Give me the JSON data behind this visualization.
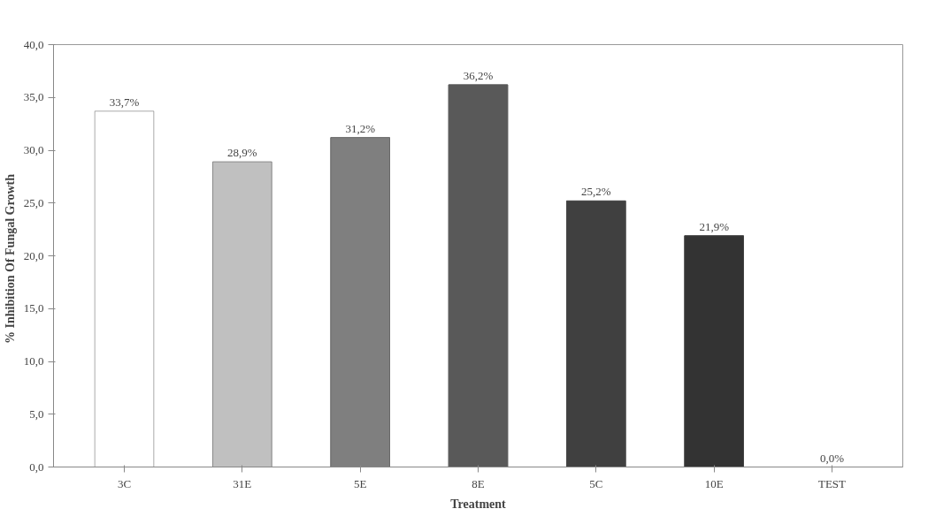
{
  "chart_data": {
    "type": "bar",
    "xlabel": "Treatment",
    "ylabel": "% Inhibition  Of Fungal  Growth",
    "categories": [
      "3C",
      "31E",
      "5E",
      "8E",
      "5C",
      "10E",
      "TEST"
    ],
    "values": [
      33.7,
      28.9,
      31.2,
      36.2,
      25.2,
      21.9,
      0.0
    ],
    "colors": [
      "#ffffff",
      "#c0c0c0",
      "#7f7f7f",
      "#595959",
      "#404040",
      "#333333",
      "#111111"
    ],
    "value_labels": [
      "33,7%",
      "28,9%",
      "31,2%",
      "36,2%",
      "25,2%",
      "21,9%",
      "0,0%"
    ],
    "ylim": [
      0,
      40
    ],
    "yticks": [
      {
        "value": 0,
        "label": "0,0"
      },
      {
        "value": 5,
        "label": "5,0"
      },
      {
        "value": 10,
        "label": "10,0"
      },
      {
        "value": 15,
        "label": "15,0"
      },
      {
        "value": 20,
        "label": "20,0"
      },
      {
        "value": 25,
        "label": "25,0"
      },
      {
        "value": 30,
        "label": "30,0"
      },
      {
        "value": 35,
        "label": "35,0"
      },
      {
        "value": 40,
        "label": "40,0"
      }
    ],
    "grid": false
  }
}
